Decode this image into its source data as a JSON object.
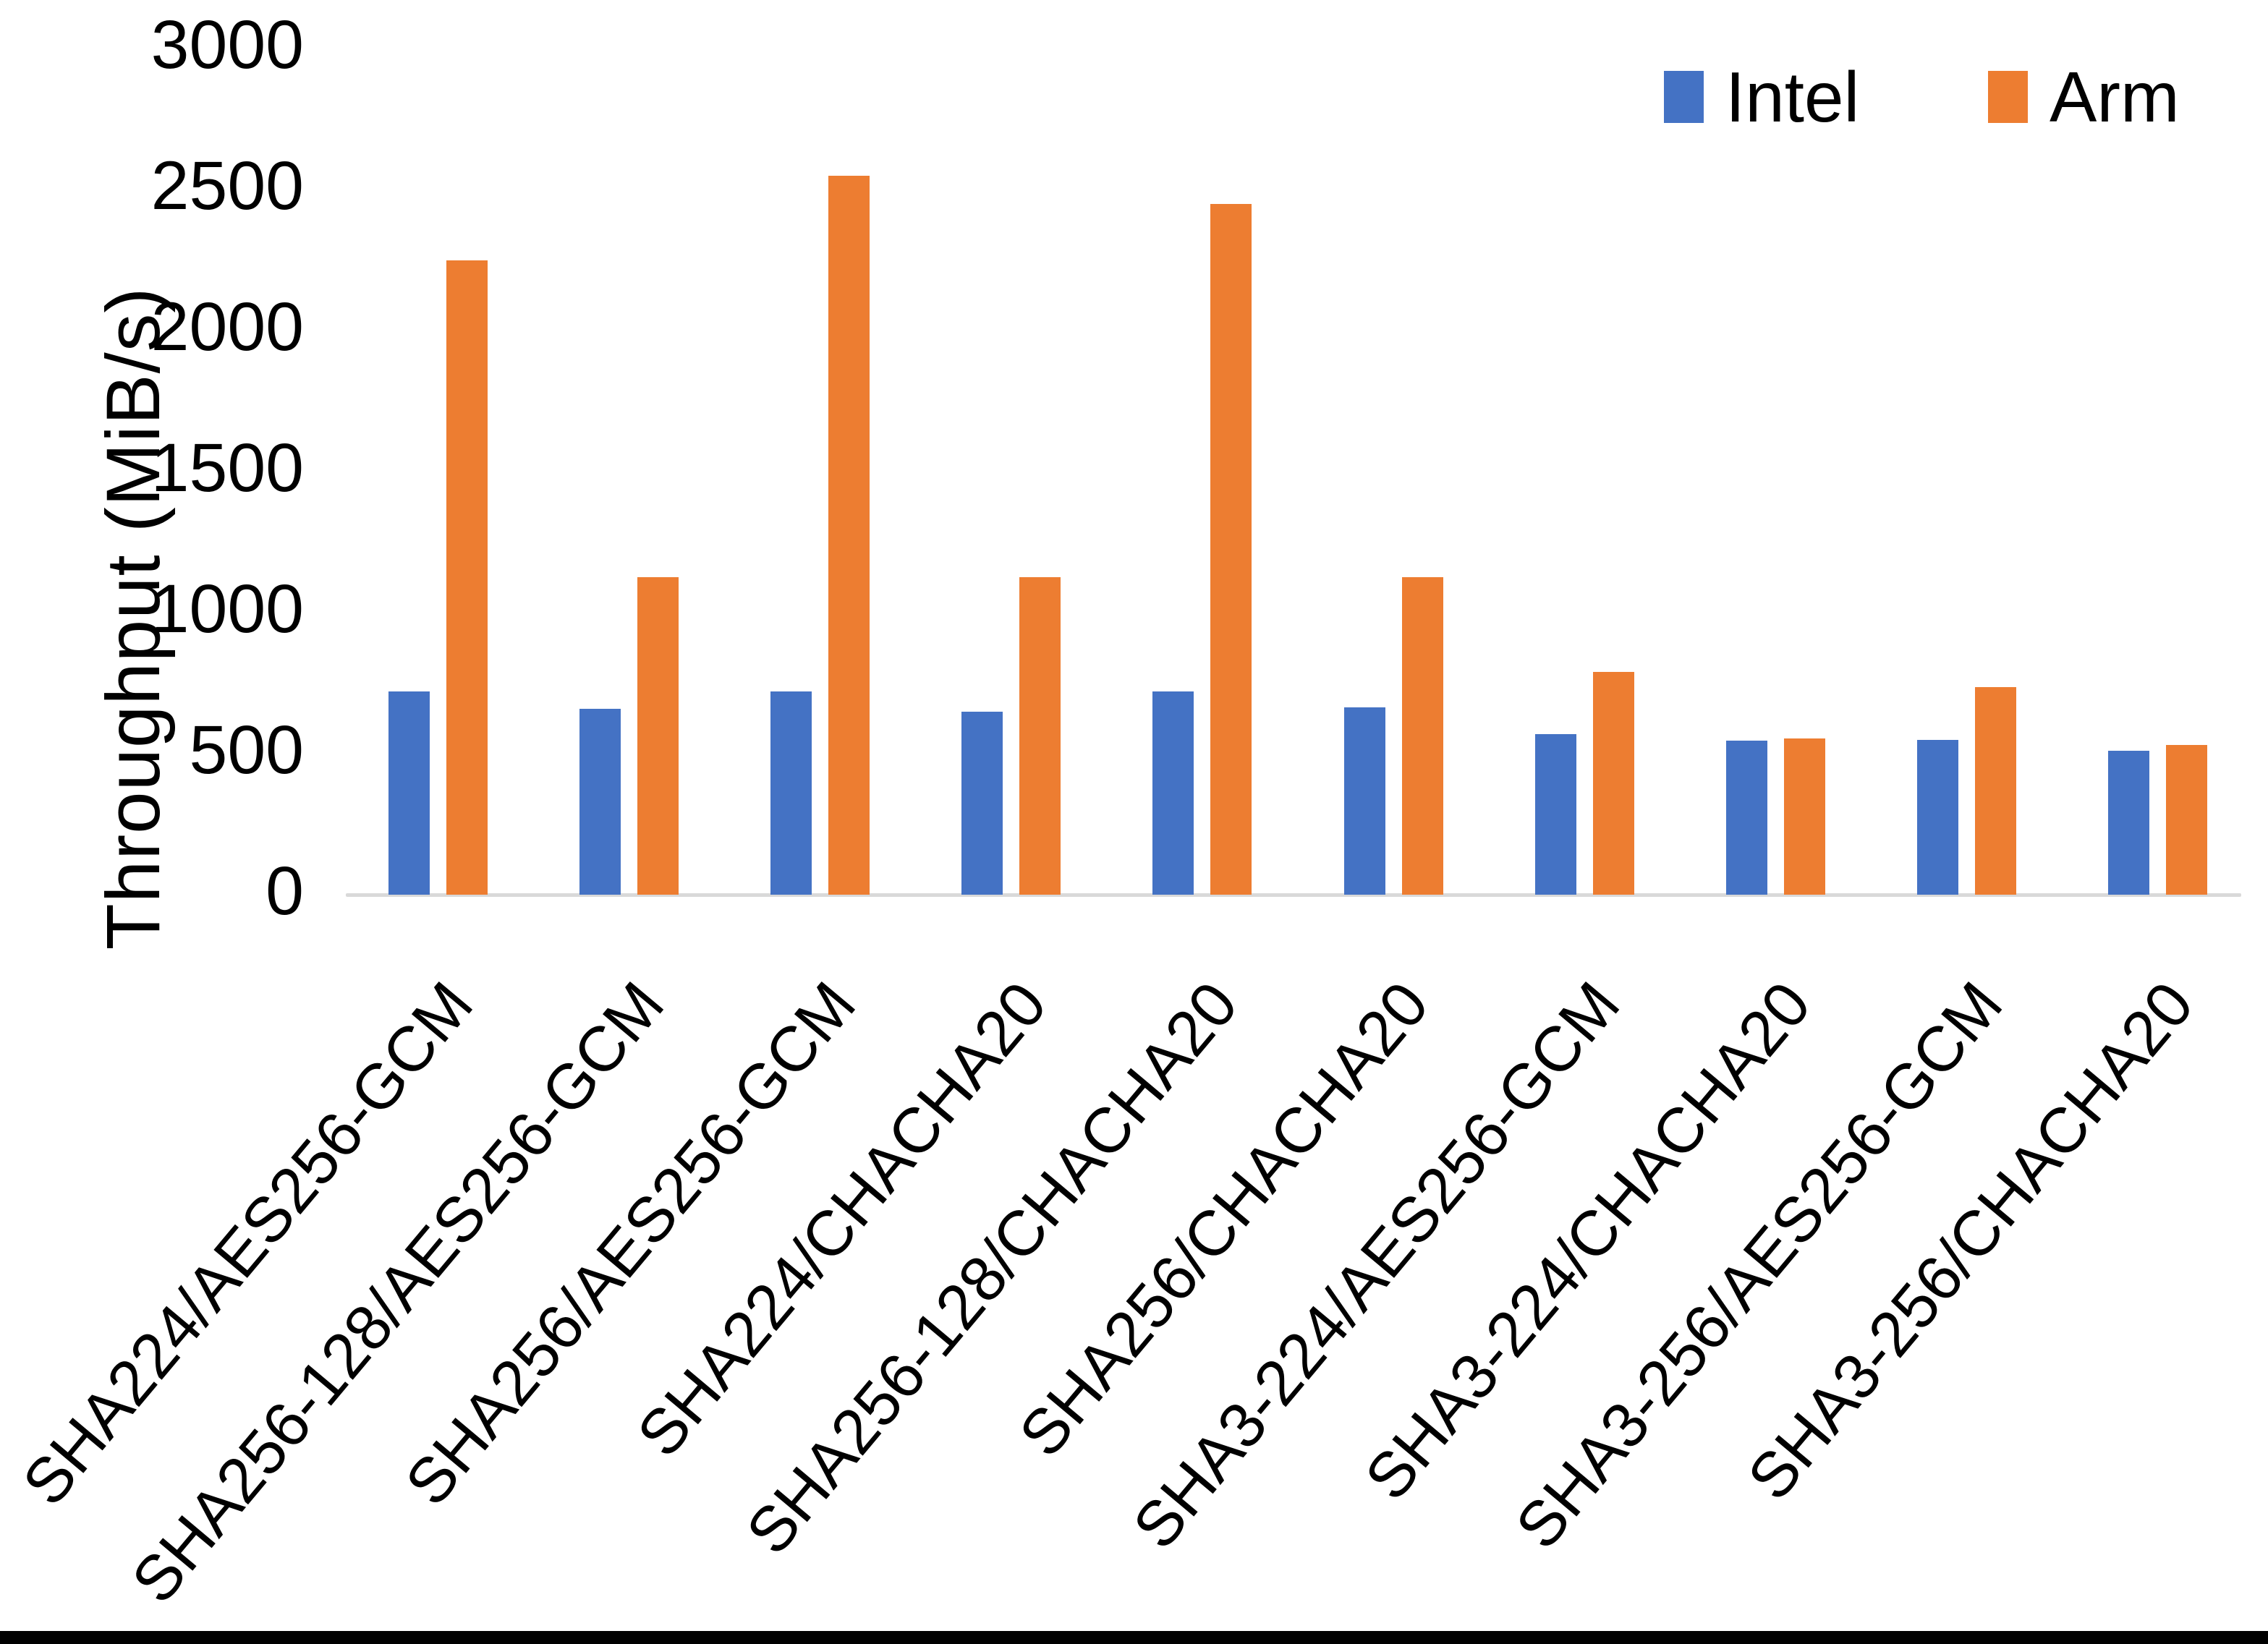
{
  "chart_data": {
    "type": "bar",
    "title": "",
    "ylabel": "Throughput (MiB/s)",
    "xlabel": "",
    "ylim": [
      0,
      3000
    ],
    "ytick_interval": 500,
    "yticks": [
      0,
      500,
      1000,
      1500,
      2000,
      2500,
      3000
    ],
    "grid": false,
    "legend_position": "top-right",
    "baseline_color": "#D9D9D9",
    "categories": [
      "SHA224/AES256-GCM",
      "SHA256-128/AES256-GCM",
      "SHA256/AES256-GCM",
      "SHA224/CHACHA20",
      "SHA256-128/CHACHA20",
      "SHA256/CHACHA20",
      "SHA3-224/AES256-GCM",
      "SHA3-224/CHACHA20",
      "SHA3-256/AES256-GCM",
      "SHA3-256/CHACHA20"
    ],
    "series": [
      {
        "name": "Intel",
        "color": "#4472C4",
        "values": [
          720,
          660,
          720,
          650,
          720,
          665,
          570,
          545,
          550,
          510
        ]
      },
      {
        "name": "Arm",
        "color": "#ED7D31",
        "values": [
          2250,
          1125,
          2550,
          1125,
          2450,
          1125,
          790,
          555,
          735,
          530
        ]
      }
    ]
  },
  "legend": {
    "intel_label": "Intel",
    "arm_label": "Arm"
  },
  "axis": {
    "y_title": "Throughput (MiB/s)"
  }
}
